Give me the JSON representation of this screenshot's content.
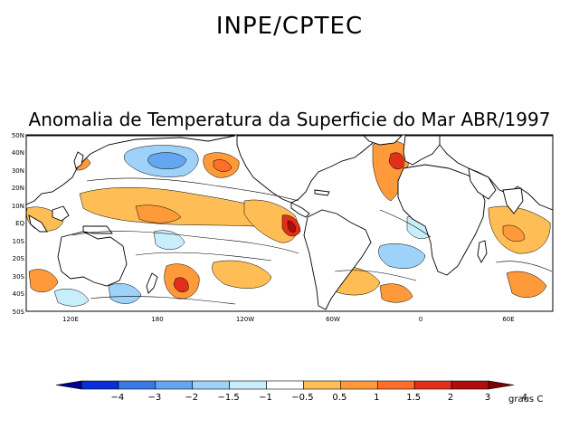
{
  "header": {
    "title": "INPE/CPTEC"
  },
  "map": {
    "title": "Anomalia de Temperatura da Superficie do Mar ABR/1997",
    "lat_labels": [
      "50N",
      "40N",
      "30N",
      "20N",
      "10N",
      "EQ",
      "10S",
      "20S",
      "30S",
      "40S",
      "50S"
    ],
    "lon_labels": [
      "120E",
      "180",
      "120W",
      "60W",
      "0",
      "60E"
    ]
  },
  "colorbar": {
    "unit": "graus C",
    "labels": [
      "-4",
      "-3",
      "-2",
      "-1.5",
      "-1",
      "-0.5",
      "0.5",
      "1",
      "1.5",
      "2",
      "3",
      "4"
    ],
    "colors": [
      "#00008f",
      "#0a2fd6",
      "#3a78e6",
      "#64a6f0",
      "#9ed2f8",
      "#c8eefb",
      "#ffffff",
      "#ffbe55",
      "#ff9a3a",
      "#ff6f2a",
      "#e0301c",
      "#b00c0c",
      "#7a0000"
    ]
  },
  "style": {
    "land": "#ffffff",
    "ocean_neutral": "#ffffff",
    "warm_1": "#ffbe55",
    "warm_2": "#ff9a3a",
    "warm_3": "#ff6f2a",
    "warm_4": "#e0301c",
    "warm_5": "#b00c0c",
    "cool_1": "#c8eefb",
    "cool_2": "#9ed2f8",
    "cool_3": "#64a6f0",
    "cool_4": "#3a78e6",
    "cool_5": "#0a2fd6"
  }
}
